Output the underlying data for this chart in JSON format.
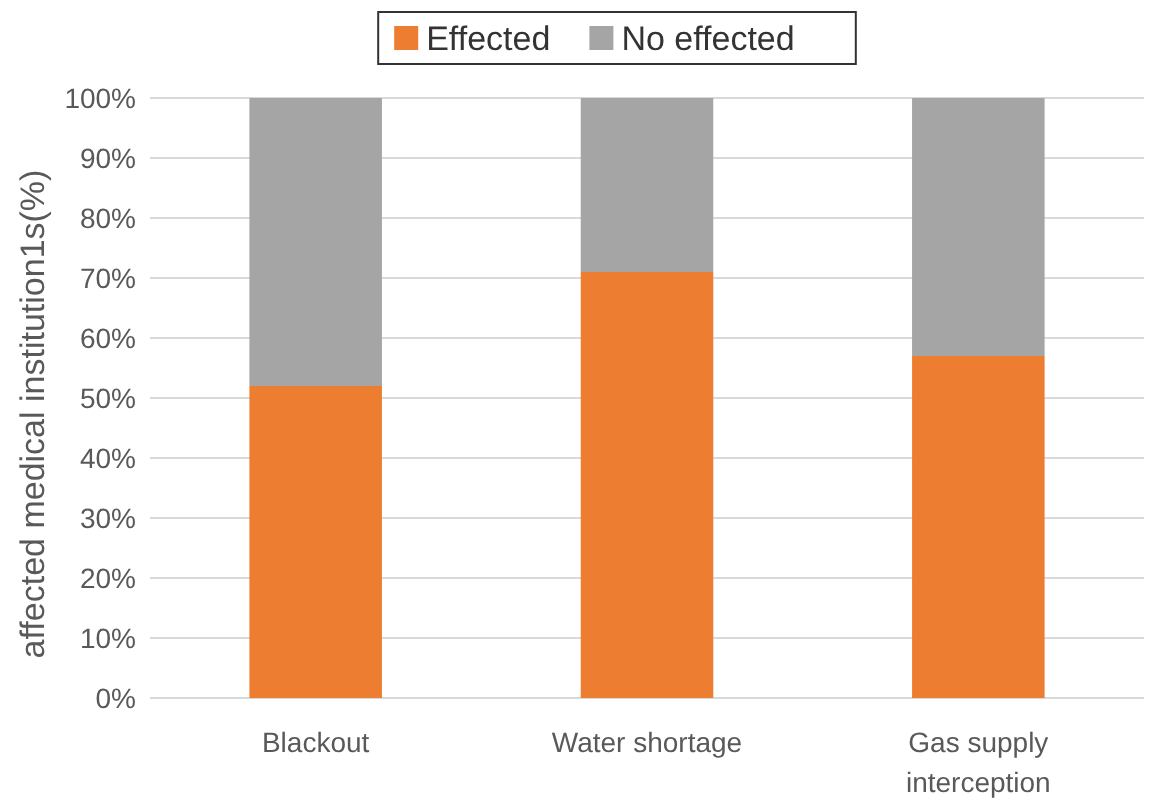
{
  "chart_data": {
    "type": "bar",
    "stacked": true,
    "ylabel": "affected medical institution1s(%)",
    "categories": [
      "Blackout",
      "Water shortage",
      "Gas supply interception"
    ],
    "series": [
      {
        "name": "Effected",
        "color": "#ed7d31",
        "values": [
          52,
          71,
          57
        ]
      },
      {
        "name": "No effected",
        "color": "#a5a5a5",
        "values": [
          48,
          29,
          43
        ]
      }
    ],
    "ylim": [
      0,
      100
    ],
    "yticks": [
      {
        "value": 0,
        "label": "0%"
      },
      {
        "value": 10,
        "label": "10%"
      },
      {
        "value": 20,
        "label": "20%"
      },
      {
        "value": 30,
        "label": "30%"
      },
      {
        "value": 40,
        "label": "40%"
      },
      {
        "value": 50,
        "label": "50%"
      },
      {
        "value": 60,
        "label": "60%"
      },
      {
        "value": 70,
        "label": "70%"
      },
      {
        "value": 80,
        "label": "80%"
      },
      {
        "value": 90,
        "label": "90%"
      },
      {
        "value": 100,
        "label": "100%"
      }
    ],
    "grid": "y",
    "legend": "top"
  }
}
